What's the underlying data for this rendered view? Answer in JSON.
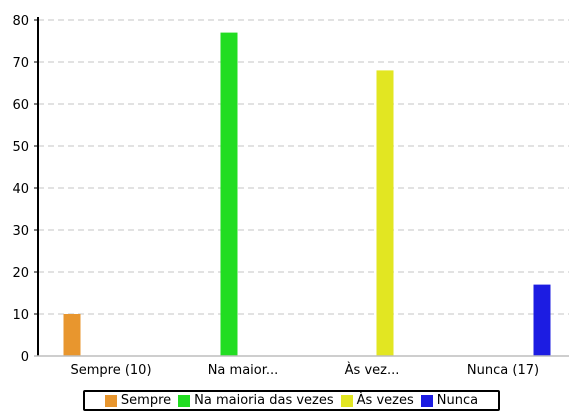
{
  "chart_data": {
    "type": "bar",
    "categories": [
      "Sempre (10)",
      "Na maior...",
      "Às vez...",
      "Nunca (17)"
    ],
    "series": [
      {
        "name": "Sempre",
        "color": "#e8962e",
        "values": [
          10,
          0,
          0,
          0
        ]
      },
      {
        "name": "Na maioria das vezes",
        "color": "#22dd22",
        "values": [
          0,
          77,
          0,
          0
        ]
      },
      {
        "name": "Às vezes",
        "color": "#e2e622",
        "values": [
          0,
          0,
          68,
          0
        ]
      },
      {
        "name": "Nunca",
        "color": "#1c1ce2",
        "values": [
          0,
          0,
          0,
          17
        ]
      }
    ],
    "yticks": [
      0,
      10,
      20,
      30,
      40,
      50,
      60,
      70,
      80
    ],
    "ylim": [
      0,
      80
    ],
    "grid": true,
    "legend_position": "bottom",
    "title": "",
    "xlabel": "",
    "ylabel": ""
  }
}
